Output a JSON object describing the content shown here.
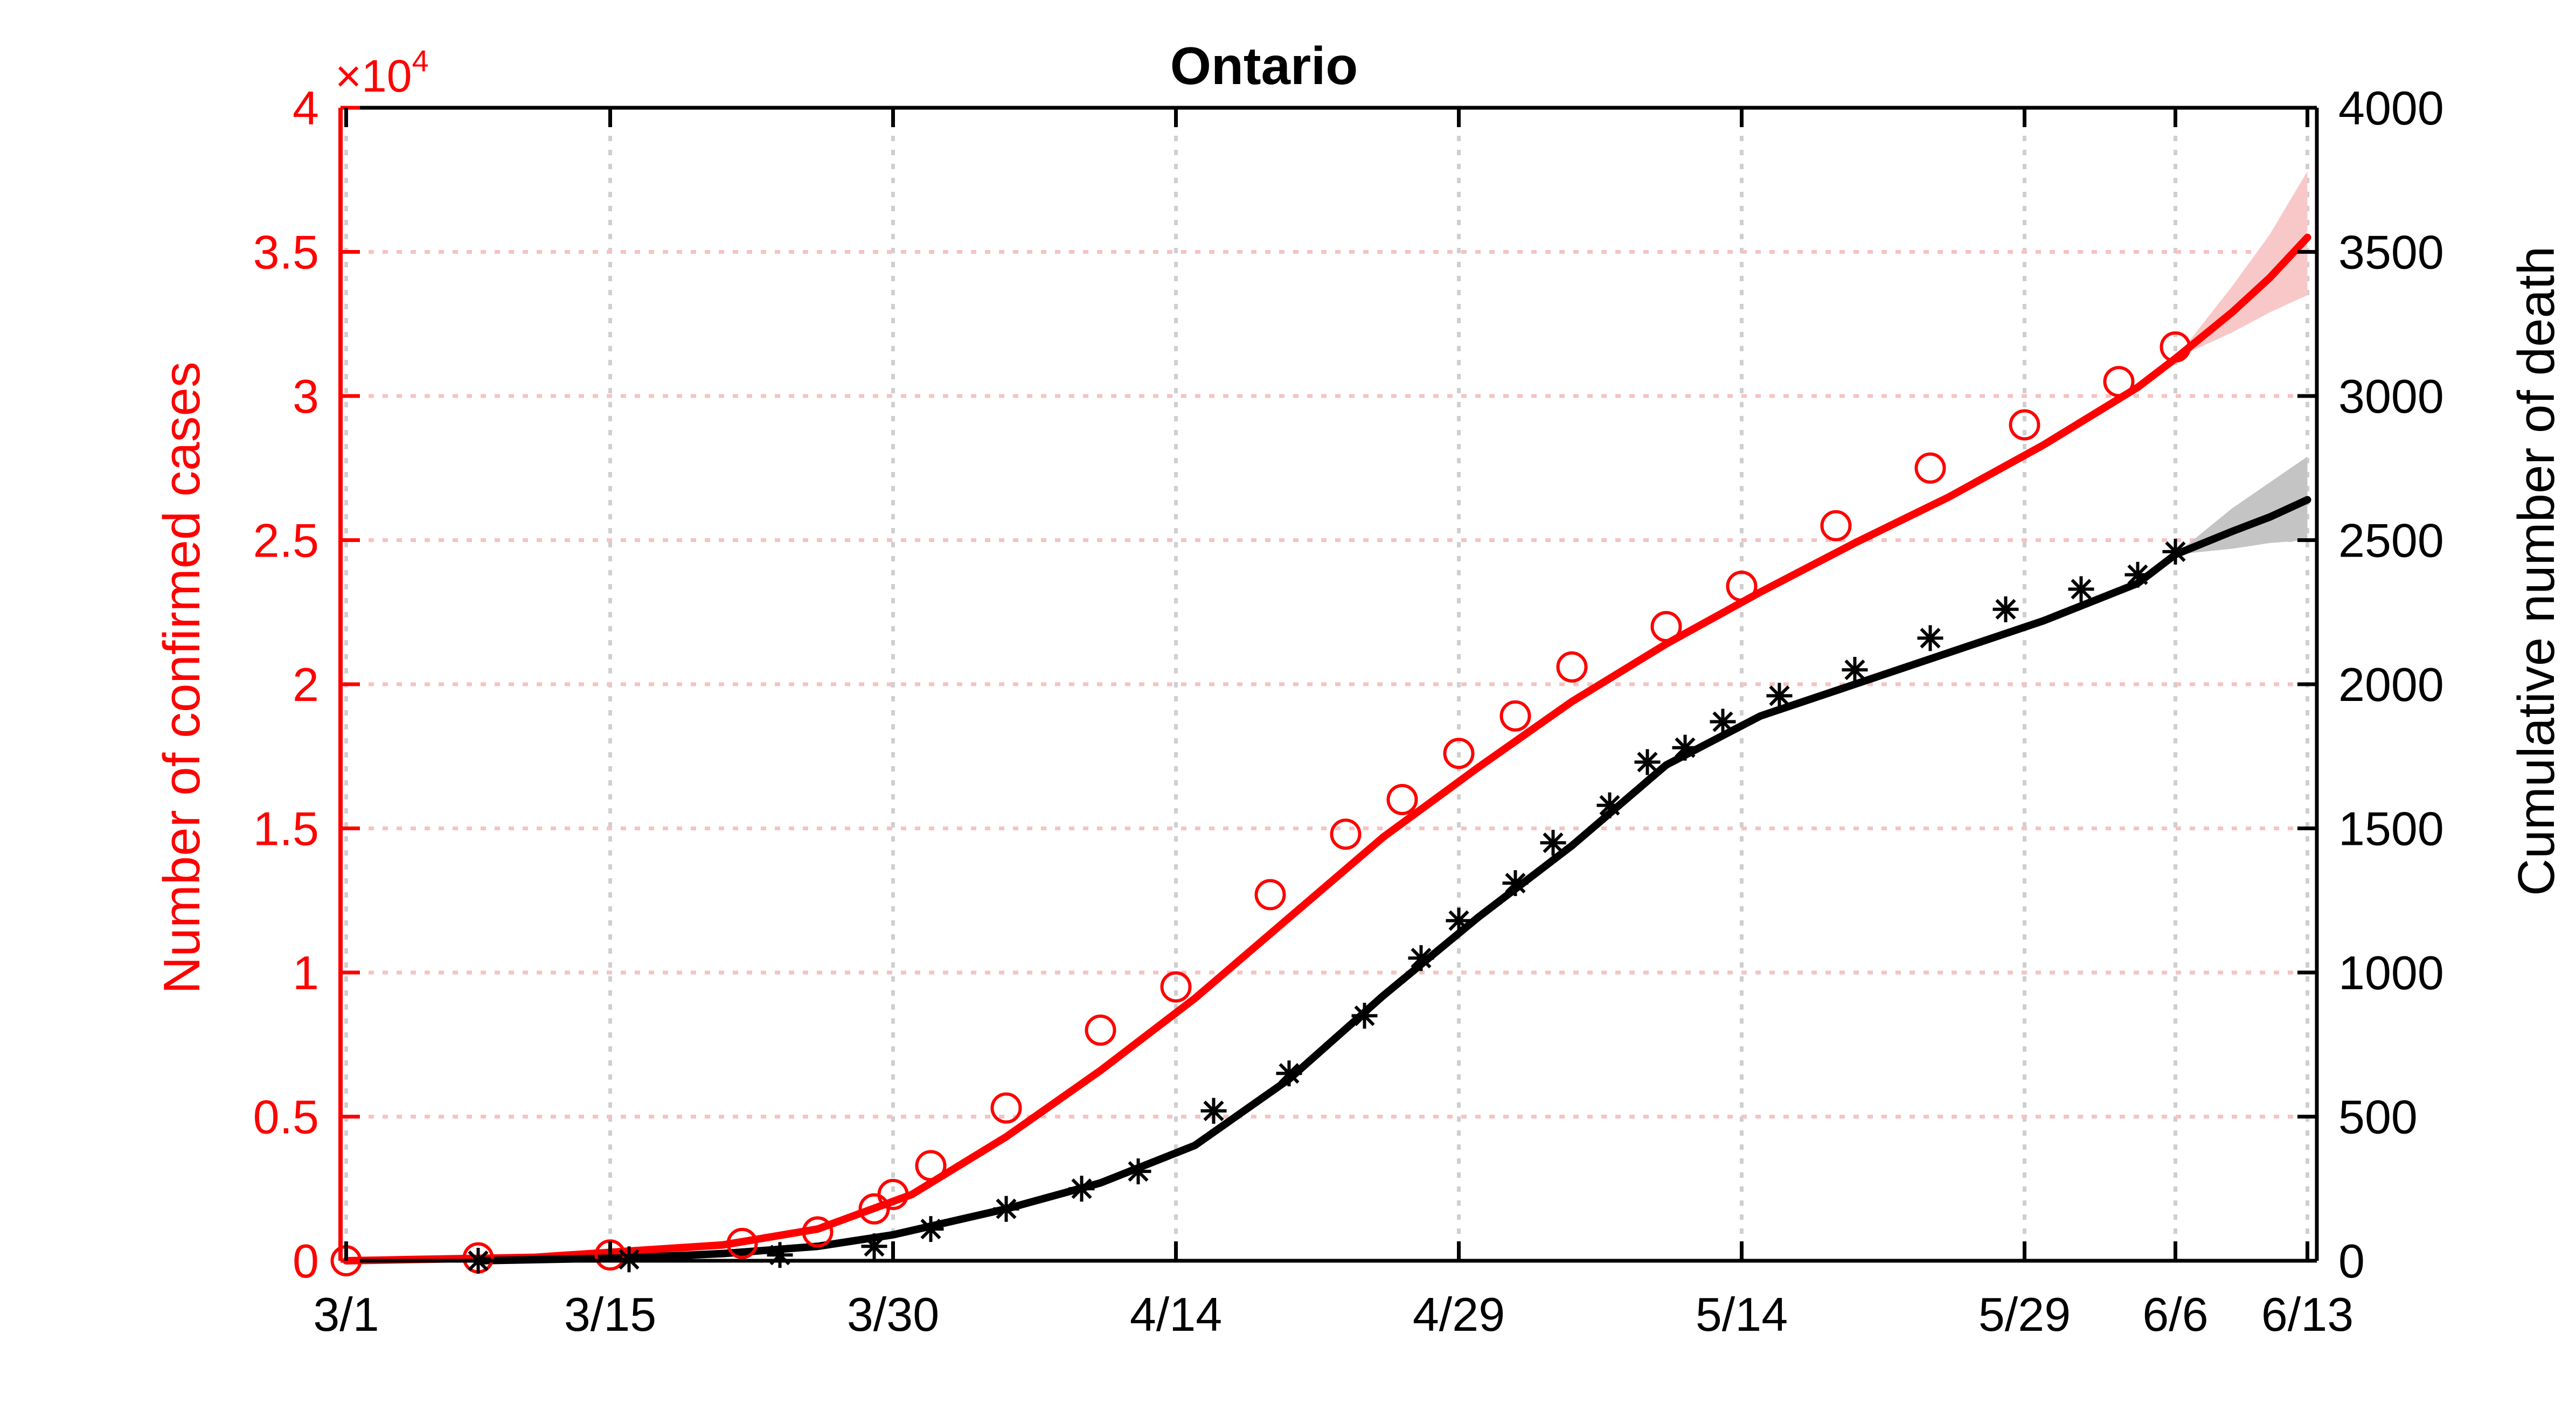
{
  "chart_data": {
    "type": "line",
    "title": "Ontario",
    "x_tick_labels": [
      "3/1",
      "3/15",
      "3/30",
      "4/14",
      "4/29",
      "5/14",
      "5/29",
      "6/6",
      "6/13"
    ],
    "x_tick_days": [
      0,
      14,
      29,
      44,
      59,
      74,
      89,
      97,
      104
    ],
    "x_range_days": [
      -0.3,
      104.5
    ],
    "x_reference_date": "3/1",
    "grid": true,
    "legend": "none",
    "left_axis": {
      "label": "Number of confirmed cases",
      "ylim": [
        0,
        40000
      ],
      "tick_values": [
        0,
        5000,
        10000,
        15000,
        20000,
        25000,
        30000,
        35000,
        40000
      ],
      "tick_labels": [
        "0",
        "0.5",
        "1",
        "1.5",
        "2",
        "2.5",
        "3",
        "3.5",
        "4"
      ],
      "multiplier_base": "×10",
      "multiplier_exponent": "4",
      "color": "#ff0000"
    },
    "right_axis": {
      "label": "Cumulative number of death",
      "ylim": [
        0,
        4000
      ],
      "tick_values": [
        0,
        500,
        1000,
        1500,
        2000,
        2500,
        3000,
        3500,
        4000
      ],
      "tick_labels": [
        "0",
        "500",
        "1000",
        "1500",
        "2000",
        "2500",
        "3000",
        "3500",
        "4000"
      ],
      "color": "#000000"
    },
    "series": [
      {
        "axis": "left",
        "kind": "observed-markers",
        "marker": "circle",
        "color": "#ff0000",
        "x": [
          0,
          7,
          14,
          21,
          25,
          28,
          29,
          31,
          35,
          40,
          44,
          49,
          53,
          56,
          59,
          62,
          65,
          70,
          74,
          79,
          84,
          89,
          94,
          97
        ],
        "y": [
          0,
          100,
          200,
          600,
          1000,
          1800,
          2300,
          3300,
          5300,
          8000,
          9500,
          12700,
          14800,
          16000,
          17600,
          18900,
          20600,
          22000,
          23400,
          25500,
          27500,
          29000,
          30500,
          31700
        ]
      },
      {
        "axis": "left",
        "kind": "fitted-curve",
        "color": "#ff0000",
        "x": [
          0,
          10,
          20,
          25,
          30,
          35,
          40,
          45,
          50,
          55,
          60,
          65,
          70,
          75,
          80,
          85,
          90,
          95,
          97
        ],
        "y": [
          0,
          120,
          550,
          1100,
          2300,
          4300,
          6600,
          9100,
          11900,
          14700,
          17100,
          19400,
          21400,
          23200,
          24900,
          26500,
          28300,
          30300,
          31300
        ]
      },
      {
        "axis": "left",
        "kind": "projection",
        "color": "#ff0000",
        "band_color": "#f8c8c8",
        "x": [
          97,
          100,
          102,
          104
        ],
        "y": [
          31300,
          32900,
          34100,
          35500
        ],
        "lower": [
          31300,
          32200,
          32900,
          33500
        ],
        "upper": [
          31300,
          33800,
          35600,
          37800
        ]
      },
      {
        "axis": "right",
        "kind": "observed-markers",
        "marker": "asterisk",
        "color": "#000000",
        "x": [
          7,
          15,
          23,
          28,
          31,
          35,
          39,
          42,
          46,
          50,
          54,
          57,
          59,
          62,
          64,
          67,
          69,
          71,
          73,
          76,
          80,
          84,
          88,
          92,
          95,
          97
        ],
        "y": [
          0,
          5,
          20,
          50,
          110,
          180,
          250,
          310,
          520,
          650,
          850,
          1050,
          1180,
          1310,
          1450,
          1580,
          1730,
          1780,
          1870,
          1960,
          2050,
          2160,
          2260,
          2330,
          2380,
          2460
        ]
      },
      {
        "axis": "right",
        "kind": "fitted-curve",
        "color": "#000000",
        "x": [
          7,
          15,
          20,
          25,
          29,
          35,
          40,
          45,
          50,
          55,
          60,
          65,
          70,
          75,
          80,
          85,
          90,
          95,
          97
        ],
        "y": [
          0,
          10,
          25,
          50,
          90,
          180,
          270,
          400,
          630,
          920,
          1190,
          1440,
          1720,
          1890,
          2000,
          2110,
          2220,
          2350,
          2450
        ]
      },
      {
        "axis": "right",
        "kind": "projection",
        "color": "#000000",
        "band_color": "#c4c4c4",
        "x": [
          97,
          100,
          102,
          104
        ],
        "y": [
          2450,
          2530,
          2580,
          2640
        ],
        "lower": [
          2450,
          2470,
          2490,
          2500
        ],
        "upper": [
          2450,
          2610,
          2700,
          2790
        ]
      }
    ]
  }
}
